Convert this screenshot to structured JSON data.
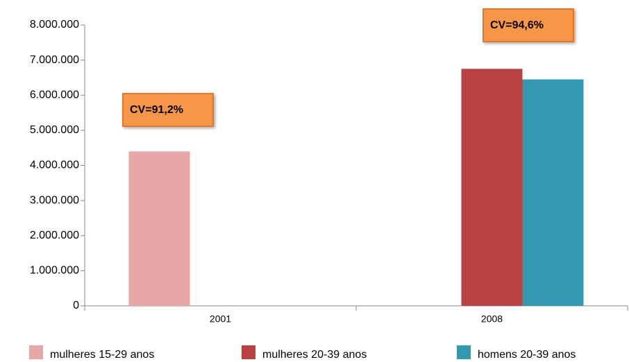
{
  "chart_data": {
    "type": "bar",
    "categories": [
      "2001",
      "2008"
    ],
    "series": [
      {
        "name": "mulheres 15-29 anos",
        "color": "#e6a7a6",
        "values": [
          4400000,
          null
        ]
      },
      {
        "name": "mulheres 20-39 anos",
        "color": "#b94140",
        "values": [
          null,
          6750000
        ]
      },
      {
        "name": "homens 20-39 anos",
        "color": "#3399b0",
        "values": [
          null,
          6450000
        ]
      }
    ],
    "ylim": [
      0,
      8000000
    ],
    "yticks": [
      0,
      {
        "value": 1000000,
        "label": "1.000.000"
      },
      {
        "value": 2000000,
        "label": "2.000.000"
      },
      {
        "value": 3000000,
        "label": "3.000.000"
      },
      {
        "value": 4000000,
        "label": "4.000.000"
      },
      {
        "value": 5000000,
        "label": "5.000.000"
      },
      {
        "value": 6000000,
        "label": "6.000.000"
      },
      {
        "value": 7000000,
        "label": "7.000.000"
      },
      {
        "value": 8000000,
        "label": "8.000.000"
      }
    ],
    "annotations": [
      "CV=91,2%",
      "CV=94,6%"
    ],
    "legend": "bottom"
  }
}
